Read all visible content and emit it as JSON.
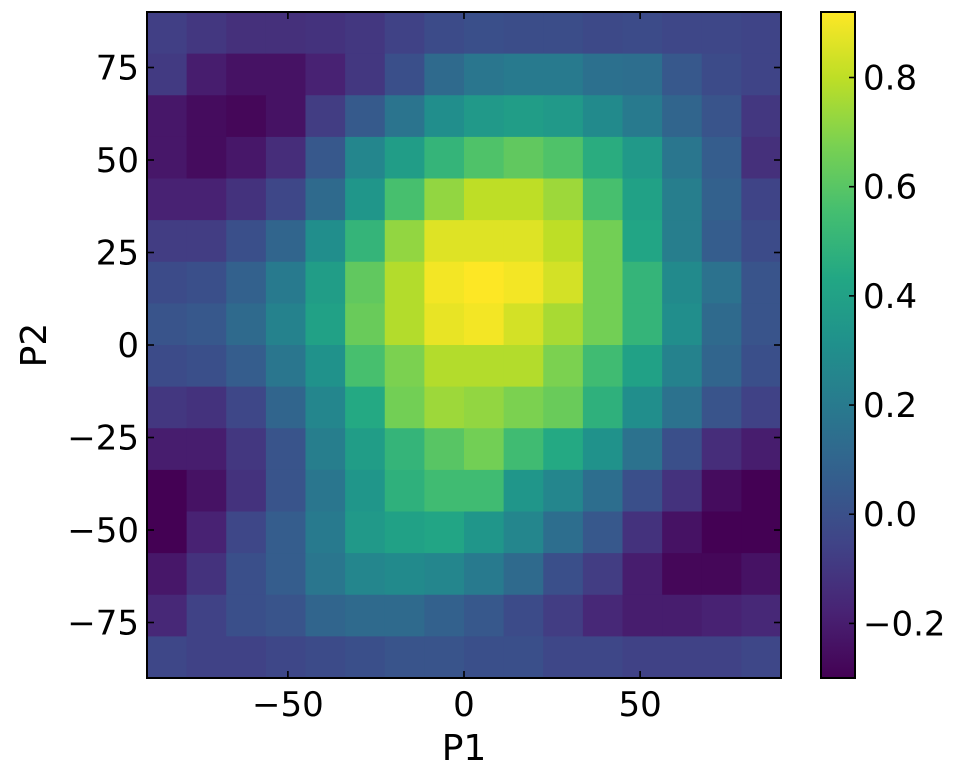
{
  "chart_data": {
    "type": "heatmap",
    "title": "",
    "xlabel": "P1",
    "ylabel": "P2",
    "xlim": [
      -90,
      90
    ],
    "ylim": [
      -90,
      90
    ],
    "x_ticks": [
      -50,
      0,
      50
    ],
    "x_tick_labels": [
      "−50",
      "0",
      "50"
    ],
    "y_ticks": [
      -75,
      -50,
      -25,
      0,
      25,
      50,
      75
    ],
    "y_tick_labels": [
      "−75",
      "−50",
      "−25",
      "0",
      "25",
      "50",
      "75"
    ],
    "colormap": "viridis",
    "clim": [
      -0.3,
      0.92
    ],
    "colorbar_ticks": [
      -0.2,
      0.0,
      0.2,
      0.4,
      0.6,
      0.8
    ],
    "colorbar_tick_labels": [
      "−0.2",
      "0.0",
      "0.2",
      "0.4",
      "0.6",
      "0.8"
    ],
    "grid": false,
    "x_bin_centers": [
      -84.375,
      -73.125,
      -61.875,
      -50.625,
      -39.375,
      -28.125,
      -16.875,
      -5.625,
      5.625,
      16.875,
      28.125,
      39.375,
      50.625,
      61.875,
      73.125,
      84.375
    ],
    "y_bin_centers": [
      84.375,
      73.125,
      61.875,
      50.625,
      39.375,
      28.125,
      16.875,
      5.625,
      -5.625,
      -16.875,
      -28.125,
      -39.375,
      -50.625,
      -61.875,
      -73.125,
      -84.375
    ],
    "values": [
      [
        -0.07,
        -0.1,
        -0.13,
        -0.13,
        -0.12,
        -0.1,
        -0.06,
        -0.02,
        0.0,
        -0.01,
        -0.01,
        -0.03,
        -0.02,
        -0.04,
        -0.04,
        -0.05
      ],
      [
        -0.09,
        -0.2,
        -0.24,
        -0.24,
        -0.18,
        -0.1,
        0.0,
        0.12,
        0.18,
        0.2,
        0.2,
        0.15,
        0.14,
        0.04,
        -0.02,
        -0.05
      ],
      [
        -0.22,
        -0.26,
        -0.28,
        -0.24,
        -0.08,
        0.05,
        0.17,
        0.3,
        0.36,
        0.38,
        0.36,
        0.28,
        0.2,
        0.1,
        0.02,
        -0.1
      ],
      [
        -0.22,
        -0.26,
        -0.22,
        -0.14,
        0.04,
        0.26,
        0.38,
        0.5,
        0.58,
        0.62,
        0.58,
        0.46,
        0.36,
        0.18,
        0.06,
        -0.13
      ],
      [
        -0.18,
        -0.18,
        -0.12,
        -0.04,
        0.12,
        0.34,
        0.56,
        0.72,
        0.8,
        0.8,
        0.74,
        0.56,
        0.4,
        0.22,
        0.08,
        -0.05
      ],
      [
        -0.08,
        -0.08,
        0.0,
        0.1,
        0.3,
        0.5,
        0.72,
        0.86,
        0.86,
        0.86,
        0.8,
        0.66,
        0.42,
        0.22,
        0.06,
        -0.02
      ],
      [
        -0.02,
        0.0,
        0.08,
        0.2,
        0.38,
        0.62,
        0.78,
        0.9,
        0.92,
        0.9,
        0.84,
        0.66,
        0.5,
        0.28,
        0.16,
        0.02
      ],
      [
        0.02,
        0.04,
        0.12,
        0.24,
        0.4,
        0.64,
        0.78,
        0.88,
        0.9,
        0.84,
        0.76,
        0.66,
        0.5,
        0.3,
        0.12,
        0.02
      ],
      [
        -0.02,
        0.0,
        0.06,
        0.18,
        0.32,
        0.56,
        0.68,
        0.78,
        0.78,
        0.78,
        0.68,
        0.54,
        0.4,
        0.24,
        0.1,
        0.0
      ],
      [
        -0.1,
        -0.12,
        -0.04,
        0.1,
        0.26,
        0.44,
        0.66,
        0.74,
        0.72,
        0.68,
        0.64,
        0.48,
        0.3,
        0.16,
        0.02,
        -0.06
      ],
      [
        -0.2,
        -0.2,
        -0.1,
        0.02,
        0.22,
        0.38,
        0.5,
        0.6,
        0.66,
        0.54,
        0.44,
        0.32,
        0.16,
        0.0,
        -0.14,
        -0.2
      ],
      [
        -0.3,
        -0.24,
        -0.12,
        0.02,
        0.18,
        0.34,
        0.48,
        0.54,
        0.54,
        0.34,
        0.26,
        0.14,
        0.0,
        -0.12,
        -0.26,
        -0.3
      ],
      [
        -0.3,
        -0.18,
        -0.04,
        0.06,
        0.2,
        0.36,
        0.4,
        0.42,
        0.34,
        0.26,
        0.14,
        0.04,
        -0.12,
        -0.24,
        -0.3,
        -0.3
      ],
      [
        -0.22,
        -0.12,
        0.0,
        0.06,
        0.18,
        0.26,
        0.28,
        0.26,
        0.2,
        0.12,
        0.0,
        -0.08,
        -0.2,
        -0.28,
        -0.28,
        -0.24
      ],
      [
        -0.16,
        -0.06,
        0.0,
        0.02,
        0.1,
        0.12,
        0.12,
        0.08,
        0.04,
        -0.02,
        -0.08,
        -0.16,
        -0.2,
        -0.2,
        -0.18,
        -0.16
      ],
      [
        -0.04,
        -0.06,
        -0.06,
        -0.04,
        -0.02,
        0.0,
        0.02,
        0.02,
        0.0,
        0.0,
        -0.04,
        -0.04,
        -0.06,
        -0.06,
        -0.06,
        -0.04
      ]
    ]
  }
}
